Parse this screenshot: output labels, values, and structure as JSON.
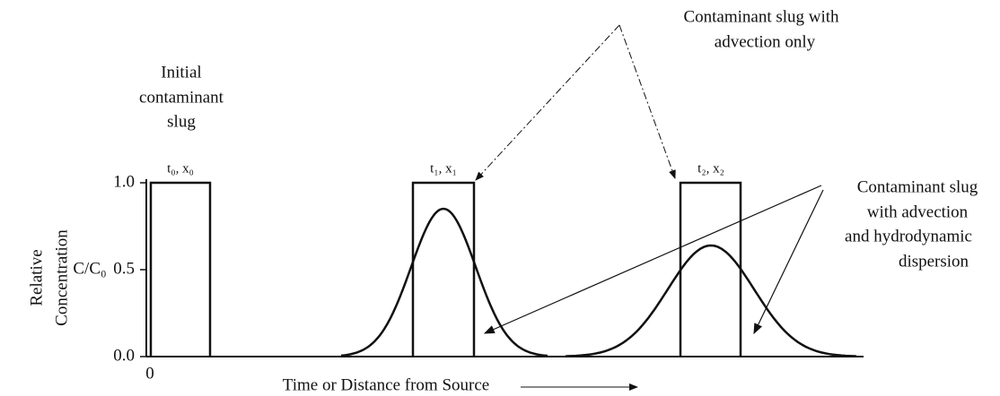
{
  "axis": {
    "ylabel_line1": "Relative",
    "ylabel_line2": "Concentration",
    "ylabel_ratio": "C/C₀",
    "ylim": [
      0,
      1
    ],
    "yticks": [
      {
        "value": 0,
        "label": "0.0"
      },
      {
        "value": 0.5,
        "label": "0.5"
      },
      {
        "value": 1,
        "label": "1.0"
      }
    ],
    "x_origin": "0",
    "xlabel": "Time or Distance from Source"
  },
  "initial": {
    "line1": "Initial",
    "line2": "contaminant",
    "line3": "slug"
  },
  "slug_labels": [
    "t₀, x₀",
    "t₁, x₁",
    "t₂, x₂"
  ],
  "advection_label": {
    "line1": "Contaminant slug with",
    "line2": "advection only"
  },
  "dispersion_label": {
    "line1": "Contaminant slug",
    "line2": "with advection",
    "line3": "and  hydrodynamic",
    "line4": "dispersion"
  }
}
